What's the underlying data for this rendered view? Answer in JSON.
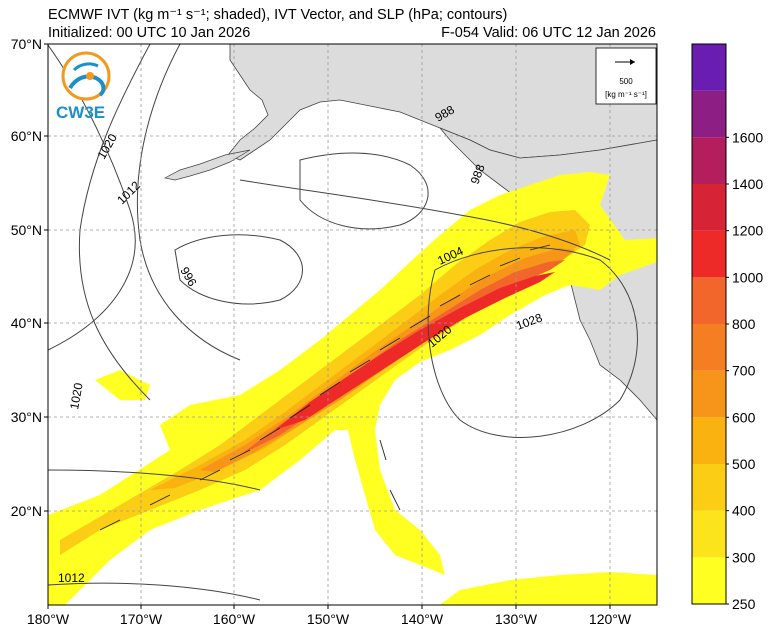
{
  "header": {
    "title": "ECMWF IVT (kg m⁻¹ s⁻¹; shaded), IVT Vector, and SLP (hPa; contours)",
    "initialized": "Initialized: 00 UTC 10 Jan 2026",
    "valid": "F-054  Valid: 06 UTC 12 Jan 2026"
  },
  "logo": {
    "text": "CW3E",
    "icon": "cw3e-logo-icon"
  },
  "reference_vector": {
    "value": "500",
    "units": "[kg m⁻¹ s⁻¹]"
  },
  "axes": {
    "lat_labels": [
      "70°N",
      "60°N",
      "50°N",
      "40°N",
      "30°N",
      "20°N"
    ],
    "lon_labels": [
      "180°W",
      "170°W",
      "160°W",
      "150°W",
      "140°W",
      "130°W",
      "120°W"
    ]
  },
  "isobar_labels": [
    "1020",
    "1012",
    "996",
    "988",
    "988",
    "1004",
    "1020",
    "1028",
    "1020",
    "1012"
  ],
  "colorbar": {
    "labels": [
      "250",
      "300",
      "400",
      "500",
      "600",
      "700",
      "800",
      "1000",
      "1200",
      "1400",
      "1600"
    ],
    "colors": [
      "#ffff22",
      "#fce41c",
      "#fbcd14",
      "#f9b20f",
      "#f7941a",
      "#f57d22",
      "#f2652b",
      "#ed2a28",
      "#d72336",
      "#b51e5c",
      "#8d1f84",
      "#6a1eb1"
    ]
  },
  "colors": {
    "land": "#dcdcdc",
    "ocean": "#ffffff",
    "grid": "#9a9a9a",
    "logo_blue": "#1a8fc9",
    "logo_orange": "#f39a1e"
  }
}
